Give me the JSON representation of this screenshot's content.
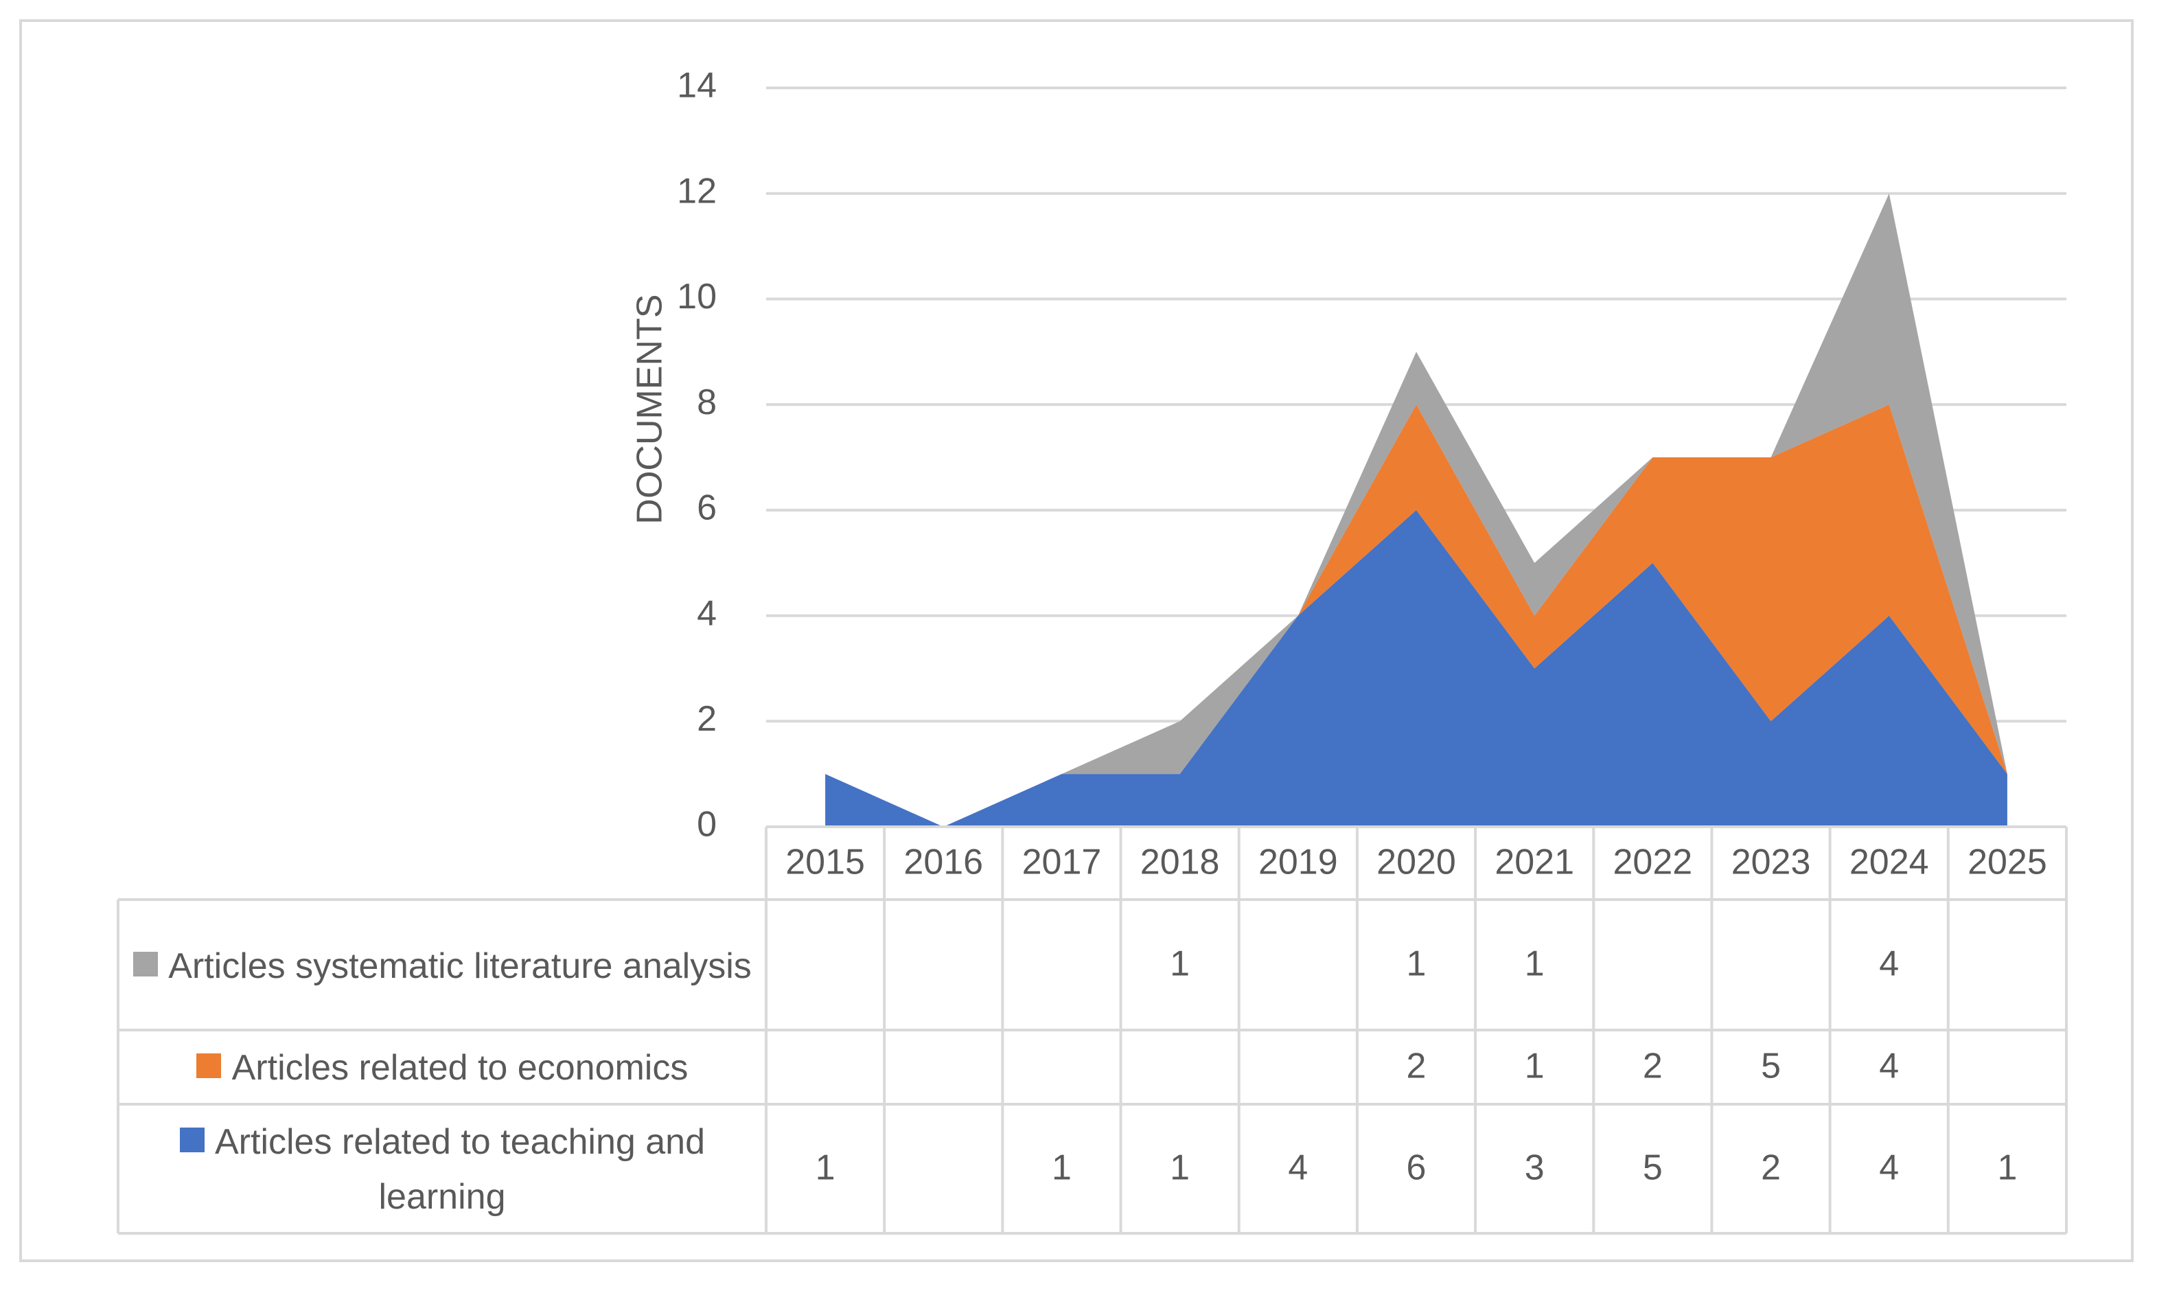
{
  "chart_data": {
    "type": "stacked_area",
    "y_label": "DOCUMENTS",
    "categories": [
      "2015",
      "2016",
      "2017",
      "2018",
      "2019",
      "2020",
      "2021",
      "2022",
      "2023",
      "2024",
      "2025"
    ],
    "series": [
      {
        "name": "Articles related to teaching and learning",
        "color": "#4472c4",
        "values": [
          1,
          0,
          1,
          1,
          4,
          6,
          3,
          5,
          2,
          4,
          1
        ]
      },
      {
        "name": "Articles related to economics",
        "color": "#ed7d31",
        "values": [
          0,
          0,
          0,
          0,
          0,
          2,
          1,
          2,
          5,
          4,
          0
        ]
      },
      {
        "name": "Articles systematic literature analysis",
        "color": "#a5a5a5",
        "values": [
          0,
          0,
          0,
          1,
          0,
          1,
          1,
          0,
          0,
          4,
          0
        ]
      }
    ],
    "ylim": [
      0,
      14
    ],
    "yticks": [
      0,
      2,
      4,
      6,
      8,
      10,
      12,
      14
    ],
    "grid": true,
    "data_table": true
  }
}
